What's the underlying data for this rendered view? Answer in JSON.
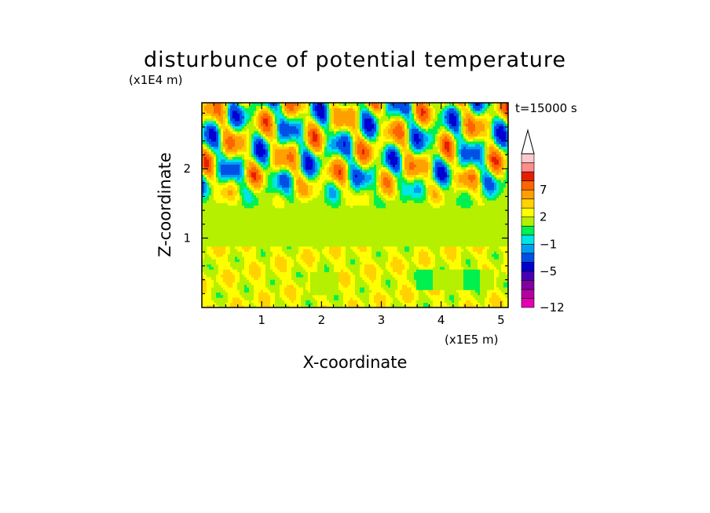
{
  "chart_data": {
    "type": "heatmap",
    "title": "disturbunce of potential temperature",
    "xlabel": "X-coordinate",
    "ylabel": "Z-coordinate",
    "x_unit": "(x1E5 m)",
    "y_unit": "(x1E4 m)",
    "time_label": "t=15000 s",
    "xlim": [
      0,
      5.12
    ],
    "ylim": [
      0,
      2.95
    ],
    "x_ticks": [
      "1",
      "2",
      "3",
      "4",
      "5"
    ],
    "y_ticks": [
      "1",
      "2"
    ],
    "colorbar": {
      "levels": [
        -12,
        -11,
        -9,
        -7,
        -5,
        -3,
        -2,
        -1,
        0,
        1,
        2,
        3,
        5,
        7,
        9,
        11
      ],
      "tick_labels": [
        "-12",
        "-5",
        "-1",
        "2",
        "7"
      ],
      "extend_top": true,
      "colors": [
        "#e600b4",
        "#b400a0",
        "#8200a0",
        "#4600b4",
        "#0000d2",
        "#0050e6",
        "#00a0f0",
        "#00e6e6",
        "#00f050",
        "#b4f000",
        "#ffff00",
        "#ffd200",
        "#ffa000",
        "#ff6400",
        "#e61e00",
        "#ff8c8c",
        "#ffc8c8"
      ]
    },
    "description_of_field": {
      "z_0_to_0.9": "mostly 0 to 2 (yellow) with scattered orange and green patches",
      "z_0.9_to_1.4": "near zero (green band)",
      "z_1.4_to_2.95": "wave-like alternating structure between about -7 and 9 with diagonal bands"
    }
  }
}
